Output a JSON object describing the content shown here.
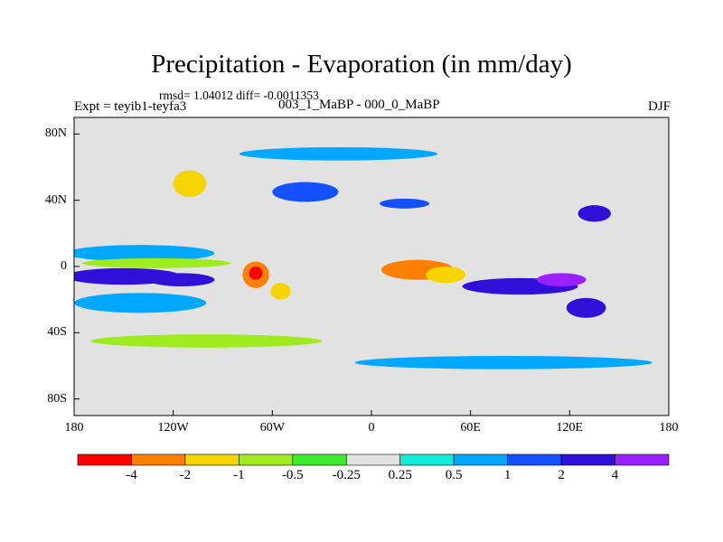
{
  "chart_data": {
    "type": "heatmap",
    "title": "Precipitation - Evaporation (in mm/day)",
    "stat_line": "rmsd= 1.04012  diff= -0.0011353",
    "experiment": "Expt = teyib1-teyfa3",
    "subtitle": "003_1_MaBP - 000_0_MaBP",
    "season": "DJF",
    "x_ticks": [
      "180",
      "120W",
      "60W",
      "0",
      "60E",
      "120E",
      "180"
    ],
    "y_ticks": [
      "80N",
      "40N",
      "0",
      "40S",
      "80S"
    ],
    "xlim": [
      -180,
      180
    ],
    "ylim": [
      -90,
      90
    ],
    "colorbar": {
      "levels": [
        -4,
        -2,
        -1,
        -0.5,
        -0.25,
        0.25,
        0.5,
        1,
        2,
        4
      ],
      "labels": [
        "-4",
        "-2",
        "-1",
        "-0.5",
        "-0.25",
        "0.25",
        "0.5",
        "1",
        "2",
        "4"
      ],
      "colors": [
        "#ff0000",
        "#ff7f00",
        "#f5d400",
        "#9eeb20",
        "#3ceb2c",
        "#e2e2e2",
        "#13ebd9",
        "#00a8ff",
        "#1450ff",
        "#3010d8",
        "#9a20ff"
      ]
    },
    "regions": [
      {
        "name": "eq-pacific-west",
        "lon": -150,
        "lat": -6,
        "rx": 35,
        "ry": 5,
        "level": "2"
      },
      {
        "name": "eq-pacific-east",
        "lon": -115,
        "lat": -8,
        "rx": 20,
        "ry": 4,
        "level": "2"
      },
      {
        "name": "south-pacific-band",
        "lon": -140,
        "lat": -22,
        "rx": 40,
        "ry": 6,
        "level": "0.5"
      },
      {
        "name": "north-pacific-band",
        "lon": -140,
        "lat": 8,
        "rx": 45,
        "ry": 5,
        "level": "0.5"
      },
      {
        "name": "eq-pacific-dry",
        "lon": -130,
        "lat": 2,
        "rx": 45,
        "ry": 3,
        "level": "-0.5"
      },
      {
        "name": "amazon-dry",
        "lon": -70,
        "lat": -5,
        "rx": 8,
        "ry": 8,
        "level": "-2"
      },
      {
        "name": "amazon-core",
        "lon": -70,
        "lat": -4,
        "rx": 4,
        "ry": 4,
        "level": "-4"
      },
      {
        "name": "brazil-dry",
        "lon": -55,
        "lat": -15,
        "rx": 6,
        "ry": 5,
        "level": "-1"
      },
      {
        "name": "central-africa-dry",
        "lon": 28,
        "lat": -2,
        "rx": 22,
        "ry": 6,
        "level": "-2"
      },
      {
        "name": "east-africa-dry",
        "lon": 45,
        "lat": -5,
        "rx": 12,
        "ry": 5,
        "level": "-1"
      },
      {
        "name": "indian-ocean-wet",
        "lon": 90,
        "lat": -12,
        "rx": 35,
        "ry": 5,
        "level": "2"
      },
      {
        "name": "maritime-wet",
        "lon": 115,
        "lat": -8,
        "rx": 15,
        "ry": 4,
        "level": "4"
      },
      {
        "name": "north-atlantic-wet",
        "lon": -40,
        "lat": 45,
        "rx": 20,
        "ry": 6,
        "level": "1"
      },
      {
        "name": "mediterranean-wet",
        "lon": 20,
        "lat": 38,
        "rx": 15,
        "ry": 3,
        "level": "1"
      },
      {
        "name": "north-america-dry",
        "lon": -110,
        "lat": 50,
        "rx": 10,
        "ry": 8,
        "level": "-1"
      },
      {
        "name": "arctic-band",
        "lon": -20,
        "lat": 68,
        "rx": 60,
        "ry": 4,
        "level": "0.5"
      },
      {
        "name": "southern-ocean-green",
        "lon": -100,
        "lat": -45,
        "rx": 70,
        "ry": 4,
        "level": "-0.5"
      },
      {
        "name": "southern-ocean-cyan",
        "lon": 80,
        "lat": -58,
        "rx": 90,
        "ry": 4,
        "level": "0.5"
      },
      {
        "name": "australia-wet",
        "lon": 130,
        "lat": -25,
        "rx": 12,
        "ry": 6,
        "level": "2"
      },
      {
        "name": "east-asia-wet",
        "lon": 135,
        "lat": 32,
        "rx": 10,
        "ry": 5,
        "level": "2"
      }
    ]
  }
}
